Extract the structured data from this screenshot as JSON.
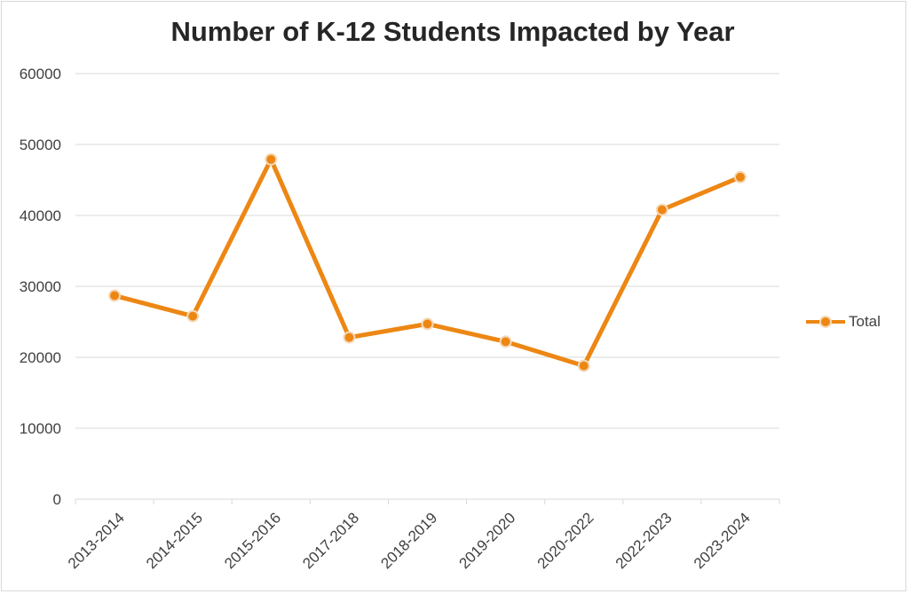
{
  "chart_data": {
    "type": "line",
    "title": "Number of K-12 Students Impacted by Year",
    "categories": [
      "2013-2014",
      "2014-2015",
      "2015-2016",
      "2017-2018",
      "2018-2019",
      "2019-2020",
      "2020-2022",
      "2022-2023",
      "2023-2024"
    ],
    "series": [
      {
        "name": "Total",
        "values": [
          28700,
          25800,
          47900,
          22800,
          24700,
          22200,
          18800,
          40800,
          45400
        ]
      }
    ],
    "yticks": [
      "0",
      "10000",
      "20000",
      "30000",
      "40000",
      "50000",
      "60000"
    ],
    "ylim": [
      0,
      60000
    ],
    "xlabel": "",
    "ylabel": "",
    "legend_position": "right",
    "grid": true,
    "colors": {
      "series": "#ED8714",
      "marker_edge": "#F5D9B8",
      "grid": "#D9D9D9",
      "text": "#404040"
    }
  }
}
